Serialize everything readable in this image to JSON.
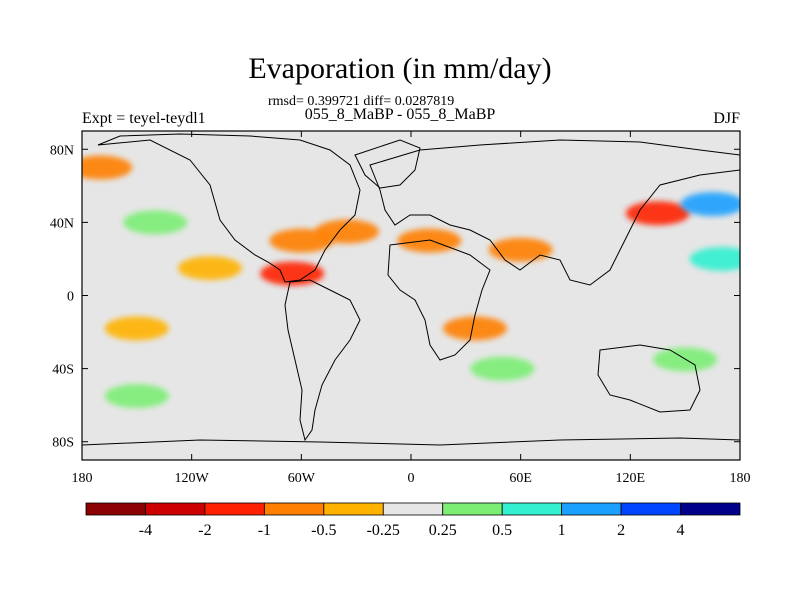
{
  "chart_data": {
    "type": "heatmap",
    "title": "Evaporation (in mm/day)",
    "stats_text": "rmsd= 0.399721 diff= 0.0287819",
    "subtitle": "055_8_MaBP - 055_8_MaBP",
    "left_string": "Expt = teyel-teydl1",
    "right_string": "DJF",
    "x_ticks": [
      "180",
      "120W",
      "60W",
      "0",
      "60E",
      "120E",
      "180"
    ],
    "y_ticks": [
      "80N",
      "40N",
      "0",
      "40S",
      "80S"
    ],
    "x_range": [
      -180,
      180
    ],
    "y_range": [
      -90,
      90
    ],
    "colorbar": {
      "levels": [
        "-4",
        "-2",
        "-1",
        "-0.5",
        "-0.25",
        "0.25",
        "0.5",
        "1",
        "2",
        "4"
      ],
      "colors": [
        "#8b0000",
        "#cc0000",
        "#ff2000",
        "#ff7f00",
        "#ffb300",
        "#e6e6e6",
        "#7cee74",
        "#33f0d0",
        "#1aa0ff",
        "#0044ff",
        "#00008b"
      ]
    },
    "fields": [
      {
        "lon": -170,
        "lat": 70,
        "color": "#ff7f00"
      },
      {
        "lon": -140,
        "lat": 40,
        "color": "#7cee74"
      },
      {
        "lon": -110,
        "lat": 15,
        "color": "#ffb300"
      },
      {
        "lon": -150,
        "lat": -18,
        "color": "#ffb300"
      },
      {
        "lon": -150,
        "lat": -55,
        "color": "#7cee74"
      },
      {
        "lon": -60,
        "lat": 30,
        "color": "#ff7f00"
      },
      {
        "lon": -35,
        "lat": 35,
        "color": "#ff7f00"
      },
      {
        "lon": -65,
        "lat": 12,
        "color": "#ff2000"
      },
      {
        "lon": 10,
        "lat": 30,
        "color": "#ff7f00"
      },
      {
        "lon": 60,
        "lat": 25,
        "color": "#ff7f00"
      },
      {
        "lon": 135,
        "lat": 45,
        "color": "#ff2000"
      },
      {
        "lon": 165,
        "lat": 50,
        "color": "#1aa0ff"
      },
      {
        "lon": 170,
        "lat": 20,
        "color": "#33f0d0"
      },
      {
        "lon": 35,
        "lat": -18,
        "color": "#ff7f00"
      },
      {
        "lon": 50,
        "lat": -40,
        "color": "#7cee74"
      },
      {
        "lon": 150,
        "lat": -35,
        "color": "#7cee74"
      }
    ]
  }
}
